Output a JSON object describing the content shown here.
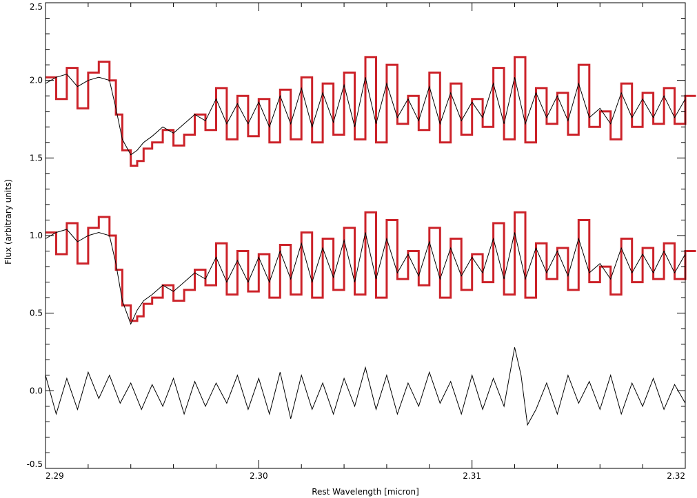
{
  "chart_data": {
    "type": "line",
    "xlabel": "Rest Wavelength [micron]",
    "ylabel": "Flux (arbitrary units)",
    "xlim": [
      2.29,
      2.32
    ],
    "ylim": [
      -0.5,
      2.5
    ],
    "xticks": [
      2.29,
      2.3,
      2.31,
      2.32
    ],
    "xtick_labels": [
      "2.29",
      "2.30",
      "2.31",
      "2.32"
    ],
    "yticks": [
      -0.5,
      0.0,
      0.5,
      1.0,
      1.5,
      2.0,
      2.5
    ],
    "ytick_labels": [
      "-0.5",
      "0.0",
      "0.5",
      "1.0",
      "1.5",
      "2.0",
      "2.5"
    ],
    "grid": false,
    "series": [
      {
        "color": "#cc2229",
        "style": "steps",
        "x": [
          2.29,
          2.2905,
          2.291,
          2.2915,
          2.292,
          2.2925,
          2.293,
          2.2933,
          2.2936,
          2.294,
          2.2943,
          2.2946,
          2.295,
          2.2955,
          2.296,
          2.2965,
          2.297,
          2.2975,
          2.298,
          2.2985,
          2.299,
          2.2995,
          2.3,
          2.3005,
          2.301,
          2.3015,
          2.302,
          2.3025,
          2.303,
          2.3035,
          2.304,
          2.3045,
          2.305,
          2.3055,
          2.306,
          2.3065,
          2.307,
          2.3075,
          2.308,
          2.3085,
          2.309,
          2.3095,
          2.31,
          2.3105,
          2.311,
          2.3115,
          2.312,
          2.3125,
          2.313,
          2.3135,
          2.314,
          2.3145,
          2.315,
          2.3155,
          2.316,
          2.3165,
          2.317,
          2.3175,
          2.318,
          2.3185,
          2.319,
          2.3195,
          2.32
        ],
        "y": [
          2.02,
          1.88,
          2.08,
          1.82,
          2.05,
          2.12,
          2.0,
          1.78,
          1.55,
          1.45,
          1.48,
          1.56,
          1.6,
          1.68,
          1.58,
          1.65,
          1.78,
          1.68,
          1.95,
          1.62,
          1.9,
          1.64,
          1.88,
          1.6,
          1.94,
          1.62,
          2.02,
          1.6,
          1.98,
          1.65,
          2.05,
          1.62,
          2.15,
          1.6,
          2.1,
          1.72,
          1.9,
          1.68,
          2.05,
          1.6,
          1.98,
          1.65,
          1.88,
          1.7,
          2.08,
          1.62,
          2.15,
          1.6,
          1.95,
          1.72,
          1.92,
          1.65,
          2.1,
          1.7,
          1.8,
          1.62,
          1.98,
          1.7,
          1.92,
          1.72,
          1.95,
          1.72,
          1.9
        ]
      },
      {
        "color": "#000000",
        "style": "line",
        "x": [
          2.29,
          2.2905,
          2.291,
          2.2915,
          2.292,
          2.2925,
          2.293,
          2.2933,
          2.2936,
          2.294,
          2.2943,
          2.2946,
          2.295,
          2.2955,
          2.296,
          2.2965,
          2.297,
          2.2975,
          2.298,
          2.2985,
          2.299,
          2.2995,
          2.3,
          2.3005,
          2.301,
          2.3015,
          2.302,
          2.3025,
          2.303,
          2.3035,
          2.304,
          2.3045,
          2.305,
          2.3055,
          2.306,
          2.3065,
          2.307,
          2.3075,
          2.308,
          2.3085,
          2.309,
          2.3095,
          2.31,
          2.3105,
          2.311,
          2.3115,
          2.312,
          2.3125,
          2.313,
          2.3135,
          2.314,
          2.3145,
          2.315,
          2.3155,
          2.316,
          2.3165,
          2.317,
          2.3175,
          2.318,
          2.3185,
          2.319,
          2.3195,
          2.32
        ],
        "y": [
          1.98,
          2.02,
          2.04,
          1.96,
          2.0,
          2.02,
          2.0,
          1.82,
          1.62,
          1.52,
          1.55,
          1.6,
          1.64,
          1.7,
          1.66,
          1.72,
          1.78,
          1.74,
          1.88,
          1.72,
          1.85,
          1.72,
          1.86,
          1.7,
          1.9,
          1.72,
          1.95,
          1.7,
          1.92,
          1.73,
          1.97,
          1.7,
          2.02,
          1.72,
          1.98,
          1.76,
          1.88,
          1.74,
          1.96,
          1.72,
          1.92,
          1.74,
          1.86,
          1.76,
          1.98,
          1.72,
          2.02,
          1.72,
          1.92,
          1.76,
          1.9,
          1.74,
          1.98,
          1.76,
          1.82,
          1.72,
          1.92,
          1.76,
          1.88,
          1.76,
          1.9,
          1.76,
          1.88
        ]
      },
      {
        "color": "#cc2229",
        "style": "steps",
        "x": [
          2.29,
          2.2905,
          2.291,
          2.2915,
          2.292,
          2.2925,
          2.293,
          2.2933,
          2.2936,
          2.294,
          2.2943,
          2.2946,
          2.295,
          2.2955,
          2.296,
          2.2965,
          2.297,
          2.2975,
          2.298,
          2.2985,
          2.299,
          2.2995,
          2.3,
          2.3005,
          2.301,
          2.3015,
          2.302,
          2.3025,
          2.303,
          2.3035,
          2.304,
          2.3045,
          2.305,
          2.3055,
          2.306,
          2.3065,
          2.307,
          2.3075,
          2.308,
          2.3085,
          2.309,
          2.3095,
          2.31,
          2.3105,
          2.311,
          2.3115,
          2.312,
          2.3125,
          2.313,
          2.3135,
          2.314,
          2.3145,
          2.315,
          2.3155,
          2.316,
          2.3165,
          2.317,
          2.3175,
          2.318,
          2.3185,
          2.319,
          2.3195,
          2.32
        ],
        "y": [
          1.02,
          0.88,
          1.08,
          0.82,
          1.05,
          1.12,
          1.0,
          0.78,
          0.55,
          0.45,
          0.48,
          0.56,
          0.6,
          0.68,
          0.58,
          0.65,
          0.78,
          0.68,
          0.95,
          0.62,
          0.9,
          0.64,
          0.88,
          0.6,
          0.94,
          0.62,
          1.02,
          0.6,
          0.98,
          0.65,
          1.05,
          0.62,
          1.15,
          0.6,
          1.1,
          0.72,
          0.9,
          0.68,
          1.05,
          0.6,
          0.98,
          0.65,
          0.88,
          0.7,
          1.08,
          0.62,
          1.15,
          0.6,
          0.95,
          0.72,
          0.92,
          0.65,
          1.1,
          0.7,
          0.8,
          0.62,
          0.98,
          0.7,
          0.92,
          0.72,
          0.95,
          0.72,
          0.9
        ]
      },
      {
        "color": "#000000",
        "style": "line",
        "x": [
          2.29,
          2.2905,
          2.291,
          2.2915,
          2.292,
          2.2925,
          2.293,
          2.2933,
          2.2936,
          2.294,
          2.2943,
          2.2946,
          2.295,
          2.2955,
          2.296,
          2.2965,
          2.297,
          2.2975,
          2.298,
          2.2985,
          2.299,
          2.2995,
          2.3,
          2.3005,
          2.301,
          2.3015,
          2.302,
          2.3025,
          2.303,
          2.3035,
          2.304,
          2.3045,
          2.305,
          2.3055,
          2.306,
          2.3065,
          2.307,
          2.3075,
          2.308,
          2.3085,
          2.309,
          2.3095,
          2.31,
          2.3105,
          2.311,
          2.3115,
          2.312,
          2.3125,
          2.313,
          2.3135,
          2.314,
          2.3145,
          2.315,
          2.3155,
          2.316,
          2.3165,
          2.317,
          2.3175,
          2.318,
          2.3185,
          2.319,
          2.3195,
          2.32
        ],
        "y": [
          0.98,
          1.02,
          1.04,
          0.96,
          1.0,
          1.02,
          1.0,
          0.82,
          0.58,
          0.43,
          0.52,
          0.58,
          0.62,
          0.68,
          0.64,
          0.7,
          0.76,
          0.72,
          0.86,
          0.7,
          0.84,
          0.7,
          0.86,
          0.7,
          0.9,
          0.72,
          0.95,
          0.7,
          0.92,
          0.73,
          0.97,
          0.7,
          1.02,
          0.72,
          0.98,
          0.76,
          0.88,
          0.74,
          0.96,
          0.72,
          0.92,
          0.74,
          0.86,
          0.76,
          0.98,
          0.72,
          1.02,
          0.72,
          0.92,
          0.76,
          0.9,
          0.74,
          0.98,
          0.76,
          0.82,
          0.72,
          0.92,
          0.76,
          0.88,
          0.76,
          0.9,
          0.76,
          0.88
        ]
      },
      {
        "color": "#000000",
        "style": "line",
        "x": [
          2.29,
          2.2905,
          2.291,
          2.2915,
          2.292,
          2.2925,
          2.293,
          2.2935,
          2.294,
          2.2945,
          2.295,
          2.2955,
          2.296,
          2.2965,
          2.297,
          2.2975,
          2.298,
          2.2985,
          2.299,
          2.2995,
          2.3,
          2.3005,
          2.301,
          2.3015,
          2.302,
          2.3025,
          2.303,
          2.3035,
          2.304,
          2.3045,
          2.305,
          2.3055,
          2.306,
          2.3065,
          2.307,
          2.3075,
          2.308,
          2.3085,
          2.309,
          2.3095,
          2.31,
          2.3105,
          2.311,
          2.3115,
          2.312,
          2.3123,
          2.3126,
          2.313,
          2.3135,
          2.314,
          2.3145,
          2.315,
          2.3155,
          2.316,
          2.3165,
          2.317,
          2.3175,
          2.318,
          2.3185,
          2.319,
          2.3195,
          2.32
        ],
        "y": [
          0.1,
          -0.15,
          0.08,
          -0.12,
          0.12,
          -0.05,
          0.1,
          -0.08,
          0.05,
          -0.12,
          0.04,
          -0.1,
          0.08,
          -0.15,
          0.06,
          -0.1,
          0.05,
          -0.08,
          0.1,
          -0.12,
          0.08,
          -0.15,
          0.12,
          -0.18,
          0.1,
          -0.12,
          0.05,
          -0.15,
          0.08,
          -0.1,
          0.15,
          -0.12,
          0.1,
          -0.15,
          0.05,
          -0.1,
          0.12,
          -0.08,
          0.06,
          -0.15,
          0.1,
          -0.12,
          0.08,
          -0.1,
          0.28,
          0.1,
          -0.22,
          -0.12,
          0.05,
          -0.15,
          0.1,
          -0.08,
          0.06,
          -0.12,
          0.1,
          -0.15,
          0.05,
          -0.1,
          0.08,
          -0.12,
          0.04,
          -0.08
        ]
      }
    ]
  }
}
